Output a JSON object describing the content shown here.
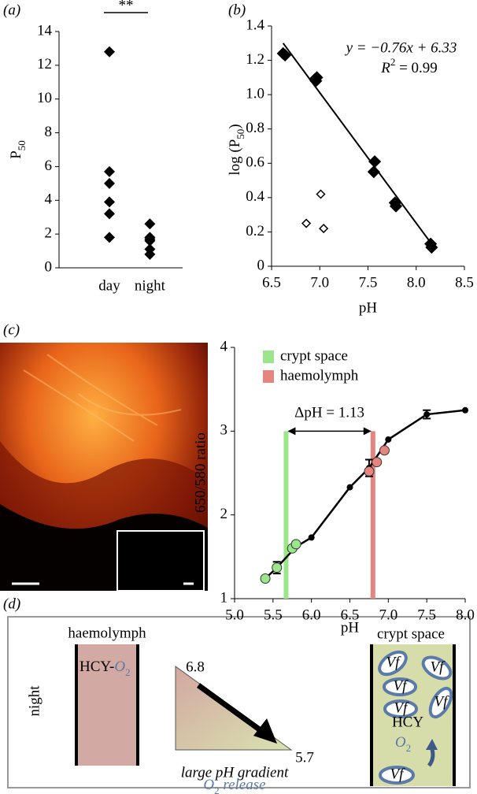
{
  "panel_labels": [
    "(a)",
    "(b)",
    "(c)",
    "(d)"
  ],
  "chart_data": [
    {
      "type": "strip",
      "ylabel": "P",
      "ylabel_subscript": "50",
      "categories": [
        "day",
        "night"
      ],
      "values": [
        [
          12.8,
          5.7,
          5.0,
          3.9,
          3.2,
          1.8
        ],
        [
          2.6,
          1.8,
          1.7,
          1.6,
          1.1,
          0.8
        ]
      ],
      "color": "#000000",
      "ylim": [
        0,
        14
      ],
      "yticks": [
        0,
        2,
        4,
        6,
        8,
        10,
        12,
        14
      ],
      "significance": "**"
    },
    {
      "type": "scatter",
      "xlabel": "pH",
      "ylabel": [
        "log (P",
        "50",
        ")"
      ],
      "equation": "y = −0.76x + 6.33",
      "r_squared": [
        "R",
        "2",
        " = 0.99"
      ],
      "series": [
        {
          "x": [
            6.62,
            6.64,
            6.95,
            6.96,
            6.97,
            7.56,
            7.57,
            7.78,
            7.79,
            8.15,
            8.16
          ],
          "values": [
            1.24,
            1.23,
            1.09,
            1.08,
            1.1,
            0.55,
            0.61,
            0.37,
            0.35,
            0.13,
            0.11
          ],
          "color": "#000000",
          "marker": "filled"
        },
        {
          "x": [
            6.86,
            7.01,
            7.04
          ],
          "values": [
            0.25,
            0.42,
            0.22
          ],
          "color": "#000000",
          "marker": "open"
        }
      ],
      "fit": {
        "x": [
          6.62,
          8.16
        ],
        "values": [
          1.3,
          0.13
        ]
      },
      "xlim": [
        6.5,
        8.5
      ],
      "xticks": [
        6.5,
        {
          "value": 7,
          "label": "7.0"
        },
        7.5,
        {
          "value": 8,
          "label": "8.0"
        },
        8.5
      ],
      "ylim": [
        0,
        1.4
      ],
      "yticks": [
        0,
        0.2,
        0.4,
        0.6,
        0.8,
        {
          "value": 1,
          "label": "1.0"
        },
        1.2,
        1.4
      ]
    },
    {
      "type": "line",
      "xlabel": "pH",
      "ylabel": "650/580 ratio",
      "series": [
        {
          "x": [
            5.4,
            5.55,
            5.8,
            6.0,
            6.5,
            6.75,
            7.0,
            7.5,
            8.0
          ],
          "values": [
            1.24,
            1.37,
            1.62,
            1.73,
            2.33,
            2.56,
            2.9,
            3.2,
            3.25
          ],
          "errors": [
            null,
            0.07,
            null,
            null,
            null,
            0.1,
            null,
            0.05,
            null
          ],
          "color": "#000000"
        },
        {
          "name": "crypt space",
          "color": "#9be68a",
          "x": [
            5.4,
            5.55,
            5.75,
            5.8
          ],
          "values": [
            1.24,
            1.37,
            1.6,
            1.65
          ],
          "band_x": 5.67
        },
        {
          "name": "haemolymph",
          "color": "#e5857f",
          "x": [
            6.75,
            6.85,
            6.95
          ],
          "values": [
            2.52,
            2.63,
            2.77
          ],
          "band_x": 6.8
        }
      ],
      "annotation": {
        "text": "ΔpH = 1.13",
        "y": 3.0
      },
      "xlim": [
        5,
        8
      ],
      "xticks": [
        {
          "value": 5,
          "label": "5.0"
        },
        5.5,
        {
          "value": 6,
          "label": "6.0"
        },
        6.5,
        {
          "value": 7,
          "label": "7.0"
        },
        7.5,
        {
          "value": 8,
          "label": "8.0"
        }
      ],
      "ylim": [
        1,
        4
      ],
      "yticks": [
        1,
        2,
        3,
        4
      ]
    }
  ],
  "diagram": {
    "condition": "night",
    "haemolymph": {
      "title": "haemolymph",
      "content": [
        "HCY-",
        "O",
        "2"
      ]
    },
    "gradient": {
      "high": "6.8",
      "low": "5.7",
      "caption": "large pH gradient",
      "release": [
        "O",
        "2",
        " release"
      ]
    },
    "crypt": {
      "title": "crypt space",
      "symbionts": [
        "Vf",
        "Vf",
        "Vf",
        "Vf",
        "Vf",
        "Vf"
      ],
      "content": "HCY",
      "oxygen": [
        "O",
        "2"
      ]
    }
  }
}
